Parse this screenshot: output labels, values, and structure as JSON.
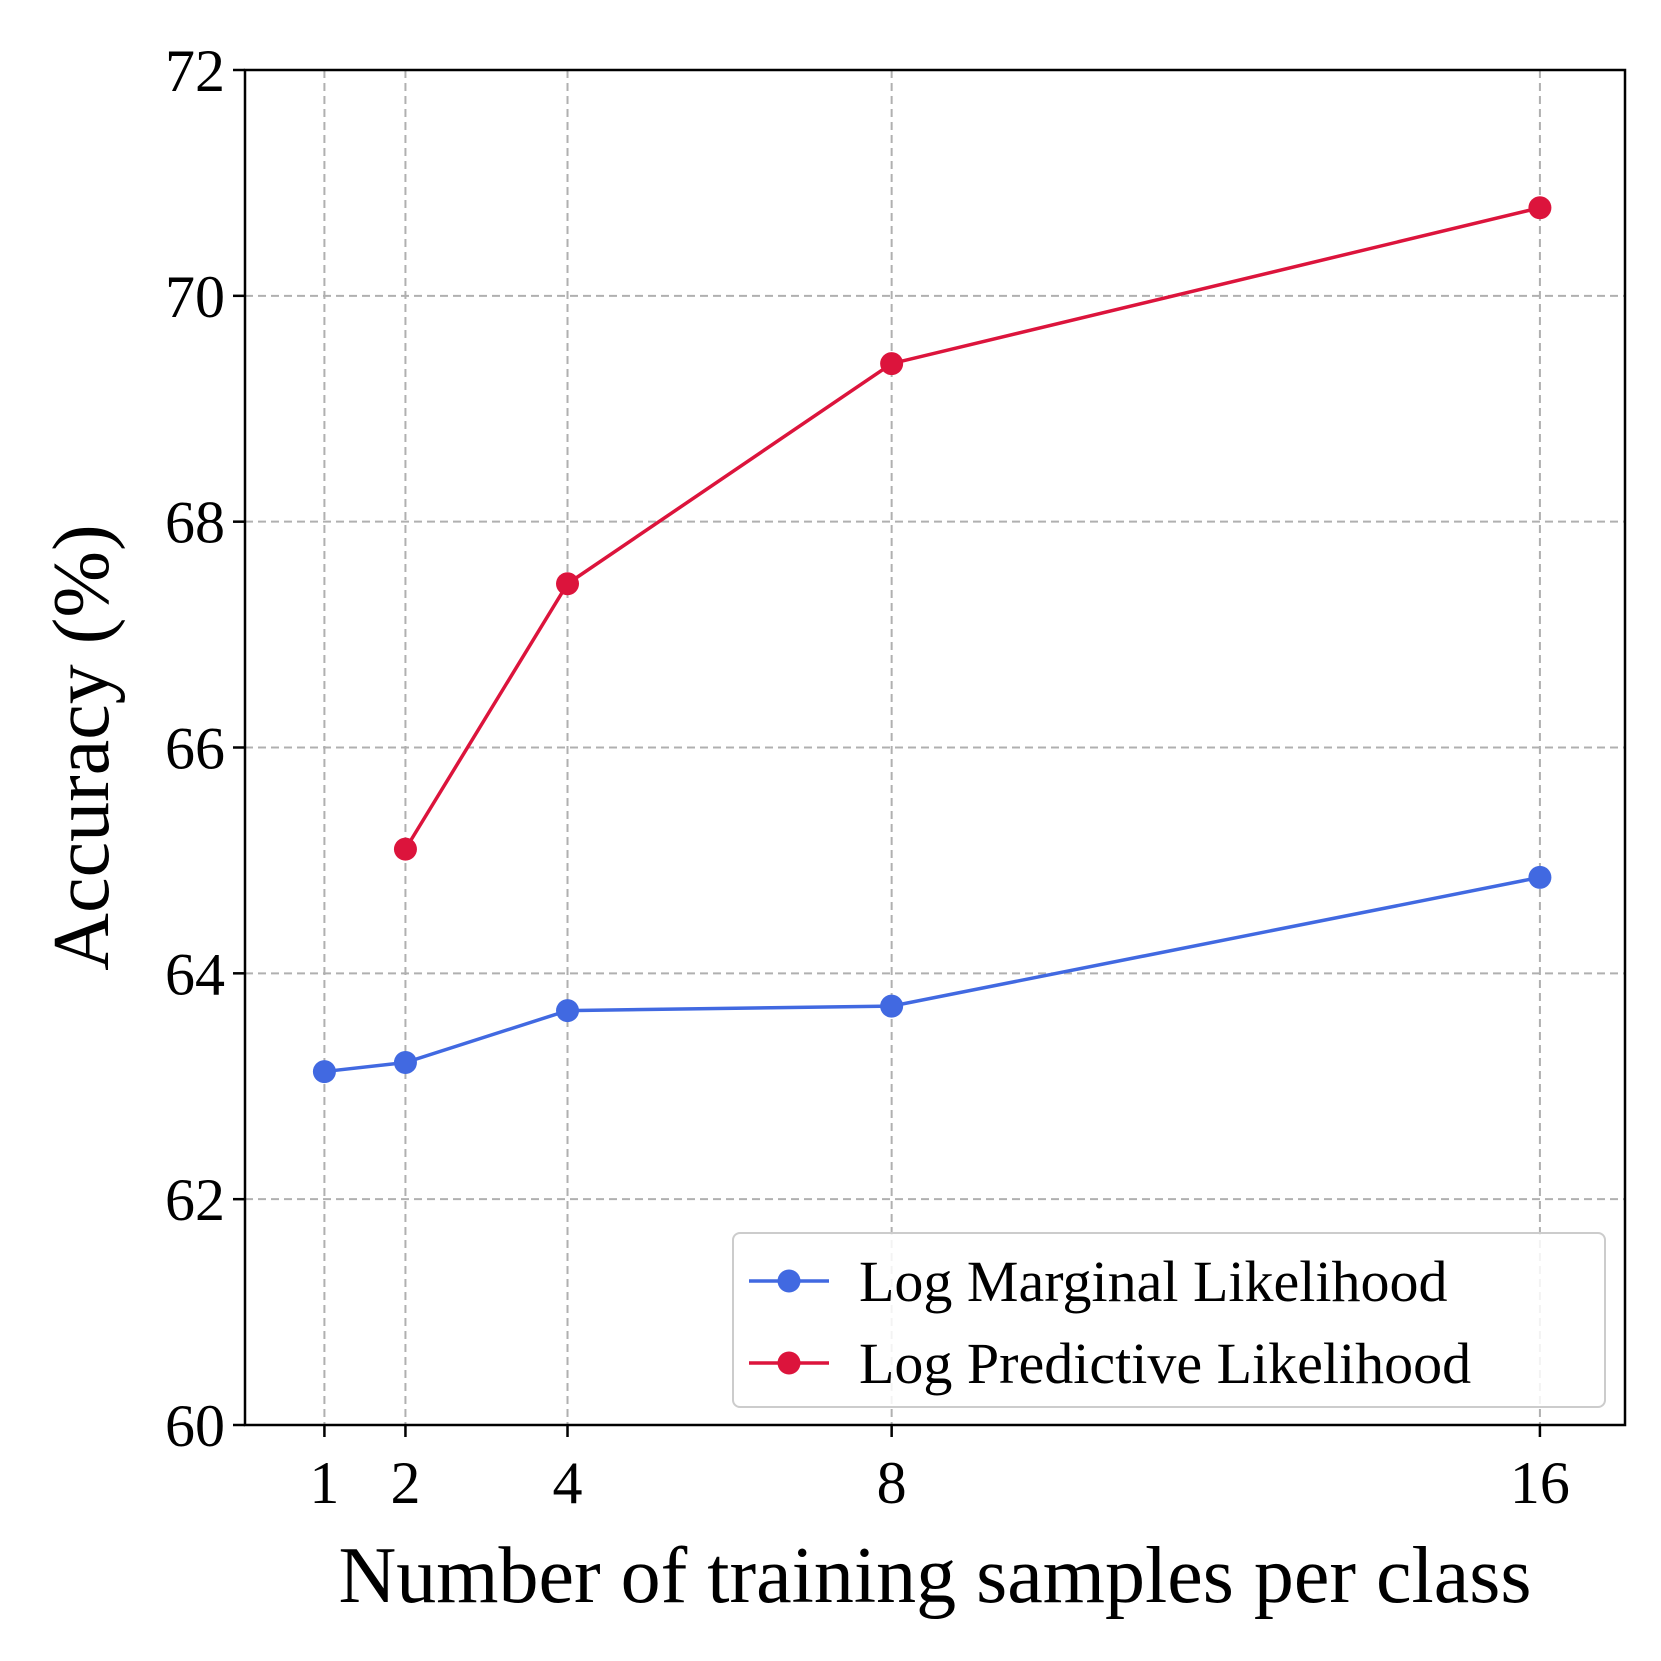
{
  "chart_data": {
    "type": "line",
    "title": "",
    "xlabel": "Number of training samples per class",
    "ylabel": "Accuracy (%)",
    "x_ticks": [
      1,
      2,
      4,
      8,
      16
    ],
    "x_tick_labels": [
      "1",
      "2",
      "4",
      "8",
      "16"
    ],
    "xlim": [
      0.02,
      17.05
    ],
    "ylim": [
      60,
      72
    ],
    "y_ticks": [
      60,
      62,
      64,
      66,
      68,
      70,
      72
    ],
    "y_tick_labels": [
      "60",
      "62",
      "64",
      "66",
      "68",
      "70",
      "72"
    ],
    "grid": true,
    "legend_position": "lower-right",
    "series": [
      {
        "name": "Log Marginal Likelihood",
        "color": "#4169e1",
        "x": [
          1,
          2,
          4,
          8,
          16
        ],
        "y": [
          63.13,
          63.21,
          63.67,
          63.71,
          64.85
        ]
      },
      {
        "name": "Log Predictive Likelihood",
        "color": "#dc143c",
        "x": [
          2,
          4,
          8,
          16
        ],
        "y": [
          65.1,
          67.45,
          69.4,
          70.78
        ]
      }
    ]
  }
}
